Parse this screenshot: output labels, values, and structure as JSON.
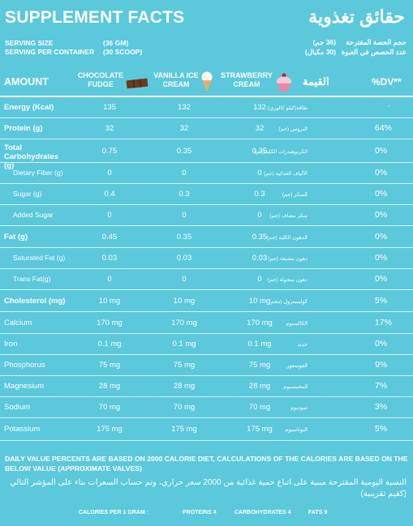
{
  "title_en": "SUPPLEMENT FACTS",
  "title_ar": "حقائق تغذوية",
  "serving": {
    "size_label": "SERVING SIZE",
    "size_value": "(36 GM)",
    "per_container_label": "SERVING PER CONTAINER",
    "per_container_value": "(30 SCOOP)",
    "size_ar": "(36 جم)",
    "size_label_ar": "حجم الحصة المقترحة",
    "per_container_ar": "(30 مكيال)",
    "per_container_label_ar": "عدد الحصص في العبوة"
  },
  "header": {
    "amount": "AMOUNT",
    "col1": "CHOCOLATE FUDGE",
    "col2": "VANILLA ICE CREAM",
    "col3": "STRAWBERRY CREAM",
    "arabic": "القيمة",
    "dv": "%DV**"
  },
  "rows": [
    {
      "en": "Energy (Kcal)",
      "ar": "طاقة(كيلو كالوري)",
      "c1": "135",
      "c2": "132",
      "c3": "132",
      "dv": "-"
    },
    {
      "en": "Protein (g)",
      "ar": "البروتين (جم)",
      "c1": "32",
      "c2": "32",
      "c3": "32",
      "dv": "64%"
    },
    {
      "en": "Total Carbohydrates (g)",
      "ar": "الكربوهيدرات الكلية(جم)",
      "c1": "0.75",
      "c2": "0.35",
      "c3": "0.35",
      "dv": "0%"
    },
    {
      "en": "Dietary Fiber (g)",
      "ar": "الألياف الغذائية (جم)",
      "c1": "0",
      "c2": "0",
      "c3": "0",
      "dv": "0%"
    },
    {
      "en": "Sugar (g)",
      "ar": "السكر (جم)",
      "c1": "0.4",
      "c2": "0.3",
      "c3": "0.3",
      "dv": "0%"
    },
    {
      "en": "Added Sugar",
      "ar": "سكر مضاف (جم)",
      "c1": "0",
      "c2": "0",
      "c3": "0",
      "dv": "0%"
    },
    {
      "en": "Fat (g)",
      "ar": "الدهون الكلية (جم)",
      "c1": "0.45",
      "c2": "0.35",
      "c3": "0.35",
      "dv": "0%"
    },
    {
      "en": "Saturated Fat (g)",
      "ar": "دهون مشبعة (جم)",
      "c1": "0.03",
      "c2": "0.03",
      "c3": "0.03",
      "dv": "0%"
    },
    {
      "en": "Trans Fat(g)",
      "ar": "دهون متحولة (جم)",
      "c1": "0",
      "c2": "0",
      "c3": "0",
      "dv": "0%"
    },
    {
      "en": "Cholesterol (mg)",
      "ar": "كوليسترول (مجم)",
      "c1": "10 mg",
      "c2": "10 mg",
      "c3": "10 mg",
      "dv": "5%"
    },
    {
      "en": "Calcium",
      "ar": "الكالسيوم",
      "c1": "170 mg",
      "c2": "170 mg",
      "c3": "170 mg",
      "dv": "17%"
    },
    {
      "en": "Iron",
      "ar": "حديد",
      "c1": "0.1 mg",
      "c2": "0.1 mg",
      "c3": "0.1 mg",
      "dv": "0%"
    },
    {
      "en": "Phosphorus",
      "ar": "الفوسفور",
      "c1": "75 mg",
      "c2": "75 mg",
      "c3": "75 mg",
      "dv": "9%"
    },
    {
      "en": "Magnesium",
      "ar": "المغنيسيوم",
      "c1": "28 mg",
      "c2": "28 mg",
      "c3": "28 mg",
      "dv": "7%"
    },
    {
      "en": "Sodium",
      "ar": "صوديوم",
      "c1": "70 mg",
      "c2": "70 mg",
      "c3": "70 mg",
      "dv": "3%"
    },
    {
      "en": "Potassium",
      "ar": "البوتاسيوم",
      "c1": "175 mg",
      "c2": "175 mg",
      "c3": "175 mg",
      "dv": "5%"
    }
  ],
  "footer": {
    "en": "DAILY VALUE PERCENTS ARE BASED ON 2000 CALORIE DIET, CALCULATIONS OF THE CALORIES ARE BASED ON THE BELOW VALUE (APPROXIMATE VALVES)",
    "ar": "النسبة اليومية المقترحة مبنية على اتباع حمية غذائية من 2000 سعر حراري، وتم حساب السعرات بناء على المؤشر التالي (كقيم تقريبية)",
    "calories_label": "CALORIES PER 1 GRAM :",
    "proteins": "PROTEINS 4",
    "carbs": "CARBOHYDRATES 4",
    "fats": "FATS 9"
  },
  "icons": [
    "chocolate-bar-icon",
    "ice-cream-icon",
    "cupcake-icon"
  ],
  "colors": {
    "background": "#5bc8dc",
    "text": "#ffffff"
  }
}
